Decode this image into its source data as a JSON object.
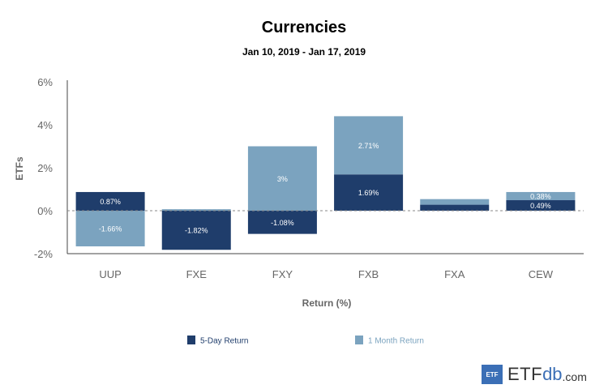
{
  "chart_data": {
    "type": "bar",
    "title": "Currencies",
    "subtitle": "Jan 10, 2019 - Jan 17, 2019",
    "xlabel": "Return (%)",
    "ylabel": "ETFs",
    "ylim": [
      -2,
      6
    ],
    "yticks": [
      -2,
      0,
      2,
      4,
      6
    ],
    "ytick_labels": [
      "-2%",
      "0%",
      "2%",
      "4%",
      "6%"
    ],
    "categories": [
      "UUP",
      "FXE",
      "FXY",
      "FXB",
      "FXA",
      "CEW"
    ],
    "series": [
      {
        "name": "5-Day Return",
        "color": "#1f3d6b",
        "values": [
          0.87,
          -1.82,
          -1.08,
          1.69,
          0.28,
          0.49
        ],
        "labels": [
          "0.87%",
          "-1.82%",
          "-1.08%",
          "1.69%",
          "",
          "0.49%"
        ]
      },
      {
        "name": "1 Month Return",
        "color": "#7ba3bf",
        "values": [
          -1.66,
          0.07,
          3,
          2.71,
          0.26,
          0.38
        ],
        "labels": [
          "-1.66%",
          "",
          "3%",
          "2.71%",
          "",
          "0.38%"
        ]
      }
    ],
    "legend_position": "bottom"
  },
  "logo": {
    "box_text": "ETF",
    "brand": "ETF",
    "brand_accent": "db",
    "suffix": ".com"
  }
}
